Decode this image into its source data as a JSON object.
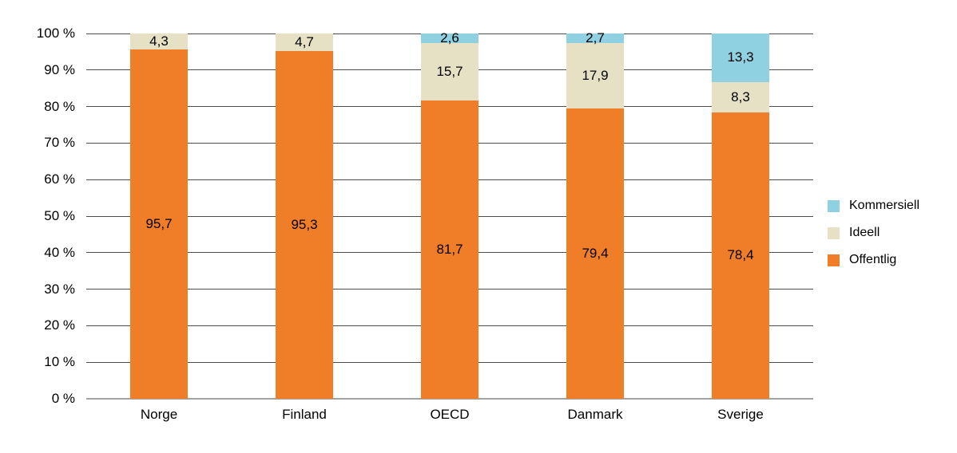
{
  "chart_data": {
    "type": "bar",
    "stacked": true,
    "unit": "percent",
    "title": "",
    "xlabel": "",
    "ylabel": "",
    "ylim": [
      0,
      100
    ],
    "grid": true,
    "categories": [
      "Norge",
      "Finland",
      "OECD",
      "Danmark",
      "Sverige"
    ],
    "series": [
      {
        "name": "Offentlig",
        "color": "#F07E28",
        "values": [
          95.7,
          95.3,
          81.7,
          79.4,
          78.4
        ],
        "labels": [
          "95,7",
          "95,3",
          "81,7",
          "79,4",
          "78,4"
        ]
      },
      {
        "name": "Ideell",
        "color": "#E6E1C4",
        "values": [
          4.3,
          4.7,
          15.7,
          17.9,
          8.3
        ],
        "labels": [
          "4,3",
          "4,7",
          "15,7",
          "17,9",
          "8,3"
        ]
      },
      {
        "name": "Kommersiell",
        "color": "#8FD0E1",
        "values": [
          0,
          0,
          2.6,
          2.7,
          13.3
        ],
        "labels": [
          "",
          "",
          "2,6",
          "2,7",
          "13,3"
        ]
      }
    ],
    "y_axis": {
      "min": 0,
      "max": 100,
      "step": 10,
      "ticks": [
        "0 %",
        "10 %",
        "20 %",
        "30 %",
        "40 %",
        "50 %",
        "60 %",
        "70 %",
        "80 %",
        "90 %",
        "100 %"
      ]
    },
    "legend": {
      "position": "right",
      "items": [
        {
          "label": "Kommersiell",
          "color": "#8FD0E1"
        },
        {
          "label": "Ideell",
          "color": "#E6E1C4"
        },
        {
          "label": "Offentlig",
          "color": "#F07E28"
        }
      ]
    }
  },
  "colors": {
    "grid": "#4D4D4D",
    "axis_baseline": "#A3A3A3",
    "text": "#000000",
    "background": "#FFFFFF"
  }
}
